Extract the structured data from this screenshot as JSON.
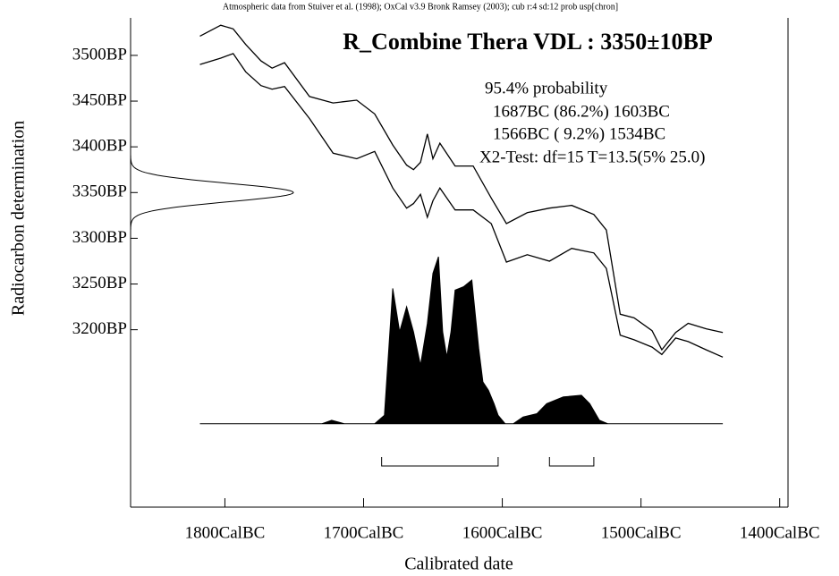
{
  "chart_data": {
    "type": "calibration",
    "header": "Atmospheric data from Stuiver et al. (1998); OxCal v3.9 Bronk Ramsey (2003); cub r:4 sd:12 prob usp[chron]",
    "title": "R_Combine Thera VDL : 3350±10BP",
    "annotations": [
      "95.4% probability",
      "1687BC (86.2%) 1603BC",
      "1566BC ( 9.2%) 1534BC",
      "X2-Test: df=15 T=13.5(5% 25.0)"
    ],
    "x_label": "Calibrated date",
    "y_label": "Radiocarbon determination",
    "xlim": [
      1868,
      1394
    ],
    "ylim": [
      3006,
      3541
    ],
    "y2lim": [
      -0.5,
      2.43
    ],
    "xticks": [
      {
        "value": 1800,
        "label": "1800CalBC"
      },
      {
        "value": 1700,
        "label": "1700CalBC"
      },
      {
        "value": 1600,
        "label": "1600CalBC"
      },
      {
        "value": 1500,
        "label": "1500CalBC"
      },
      {
        "value": 1400,
        "label": "1400CalBC"
      }
    ],
    "yticks": [
      {
        "value": 3500,
        "label": "3500BP"
      },
      {
        "value": 3450,
        "label": "3450BP"
      },
      {
        "value": 3400,
        "label": "3400BP"
      },
      {
        "value": 3350,
        "label": "3350BP"
      },
      {
        "value": 3300,
        "label": "3300BP"
      },
      {
        "value": 3250,
        "label": "3250BP"
      },
      {
        "value": 3200,
        "label": "3200BP"
      }
    ],
    "measurement": {
      "mean": 3350,
      "sd": 10
    },
    "curve": {
      "color": "#000000",
      "x": [
        1818,
        1803,
        1794,
        1785,
        1774,
        1766,
        1757,
        1739,
        1722,
        1705,
        1692,
        1679,
        1669,
        1664,
        1659,
        1654,
        1650,
        1645,
        1634,
        1621,
        1608,
        1597,
        1582,
        1566,
        1550,
        1534,
        1525,
        1515,
        1505,
        1492,
        1485,
        1475,
        1466,
        1453,
        1441
      ],
      "upper": [
        3521,
        3533,
        3529,
        3512,
        3494,
        3486,
        3492,
        3455,
        3448,
        3451,
        3436,
        3402,
        3380,
        3375,
        3383,
        3414,
        3387,
        3404,
        3379,
        3379,
        3344,
        3316,
        3328,
        3333,
        3336,
        3326,
        3309,
        3217,
        3213,
        3199,
        3178,
        3197,
        3207,
        3201,
        3197
      ],
      "lower": [
        3490,
        3497,
        3502,
        3482,
        3467,
        3463,
        3466,
        3431,
        3393,
        3387,
        3395,
        3355,
        3333,
        3338,
        3348,
        3323,
        3341,
        3355,
        3331,
        3331,
        3316,
        3274,
        3282,
        3275,
        3289,
        3284,
        3267,
        3194,
        3189,
        3181,
        3173,
        3191,
        3187,
        3178,
        3170
      ]
    },
    "posterior": {
      "color": "#000000",
      "axis": "y2",
      "x": [
        1818,
        1730,
        1723,
        1714,
        1692,
        1685,
        1679,
        1674,
        1669,
        1664,
        1659,
        1654,
        1650,
        1646,
        1643,
        1640,
        1637,
        1634,
        1628,
        1622,
        1617,
        1614,
        1610,
        1606,
        1603,
        1598,
        1592,
        1585,
        1575,
        1568,
        1556,
        1543,
        1537,
        1530,
        1524,
        1441
      ],
      "values": [
        0,
        0,
        0.02,
        0,
        0,
        0.05,
        0.81,
        0.55,
        0.7,
        0.55,
        0.35,
        0.6,
        0.9,
        1,
        0.55,
        0.4,
        0.55,
        0.8,
        0.82,
        0.86,
        0.45,
        0.25,
        0.2,
        0.12,
        0.05,
        0,
        0,
        0.04,
        0.06,
        0.12,
        0.16,
        0.17,
        0.12,
        0.02,
        0,
        0
      ]
    },
    "ranges": [
      {
        "from": 1687,
        "to": 1603
      },
      {
        "from": 1566,
        "to": 1534
      }
    ]
  }
}
